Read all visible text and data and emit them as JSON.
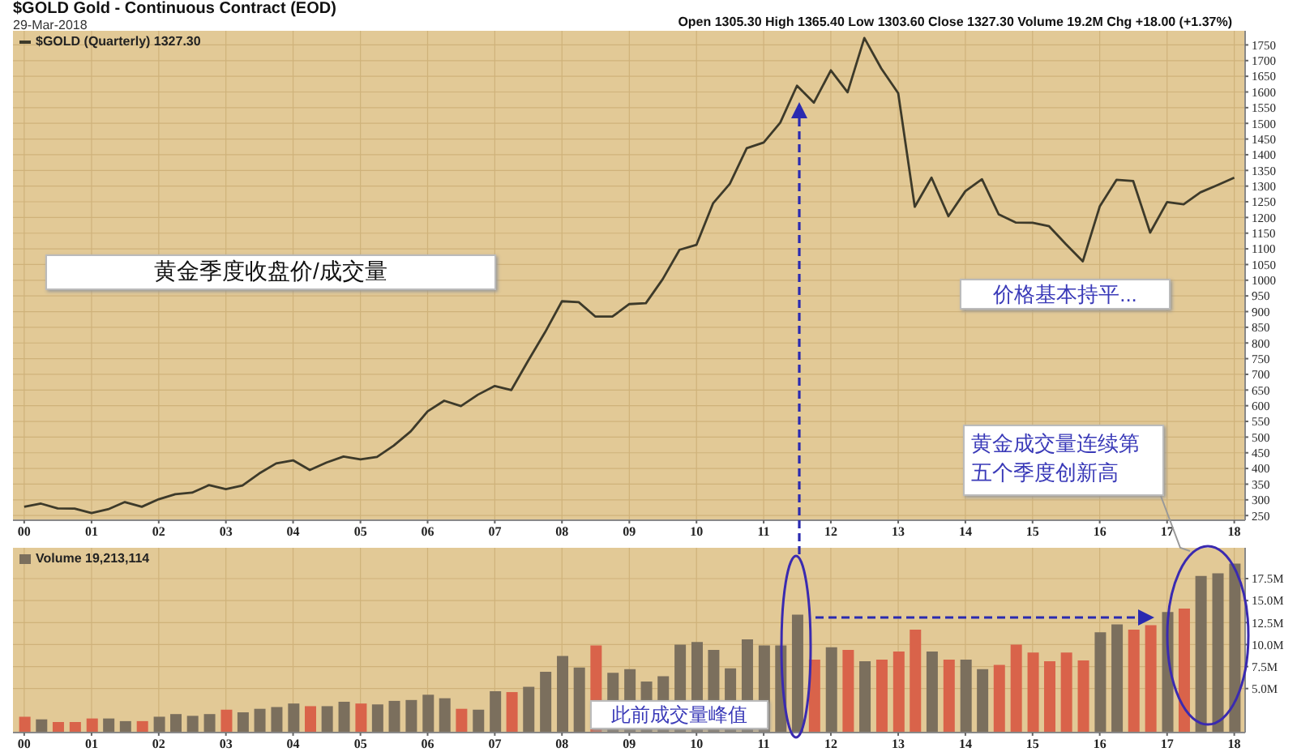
{
  "chart_data": [
    {
      "type": "line",
      "title": "$GOLD Gold - Continuous Contract (EOD)",
      "annotations": [
        "29-Mar-2018",
        "Open 1305.30 High 1365.40 Low 1303.60 Close 1327.30 Volume 19.2M Chg +18.00 (+1.37%)",
        "黄金季度收盘价/成交量",
        "价格基本持平...",
        "黄金成交量连续第五个季度创新高"
      ],
      "x": [
        "2000-01",
        "2000-04",
        "2000-07",
        "2000-10",
        "2001-01",
        "2001-04",
        "2001-07",
        "2001-10",
        "2002-01",
        "2002-04",
        "2002-07",
        "2002-10",
        "2003-01",
        "2003-04",
        "2003-07",
        "2003-10",
        "2004-01",
        "2004-04",
        "2004-07",
        "2004-10",
        "2005-01",
        "2005-04",
        "2005-07",
        "2005-10",
        "2006-01",
        "2006-04",
        "2006-07",
        "2006-10",
        "2007-01",
        "2007-04",
        "2007-07",
        "2007-10",
        "2008-01",
        "2008-04",
        "2008-07",
        "2008-10",
        "2009-01",
        "2009-04",
        "2009-07",
        "2009-10",
        "2010-01",
        "2010-04",
        "2010-07",
        "2010-10",
        "2011-01",
        "2011-04",
        "2011-07",
        "2011-10",
        "2012-01",
        "2012-04",
        "2012-07",
        "2012-10",
        "2013-01",
        "2013-04",
        "2013-07",
        "2013-10",
        "2014-01",
        "2014-04",
        "2014-07",
        "2014-10",
        "2015-01",
        "2015-04",
        "2015-07",
        "2015-10",
        "2016-01",
        "2016-04",
        "2016-07",
        "2016-10",
        "2017-01",
        "2017-04",
        "2017-07",
        "2017-10",
        "2018-01"
      ],
      "series": [
        {
          "name": "$GOLD (Quarterly) 1327.30",
          "color": "#3d3a2a",
          "values": [
            278,
            288,
            273,
            272,
            258,
            270,
            293,
            278,
            302,
            318,
            323,
            347,
            334,
            346,
            384,
            416,
            426,
            395,
            419,
            438,
            429,
            437,
            473,
            518,
            582,
            616,
            599,
            635,
            663,
            650,
            743,
            834,
            933,
            930,
            884,
            884,
            924,
            927,
            1003,
            1097,
            1113,
            1245,
            1307,
            1421,
            1439,
            1502,
            1620,
            1566,
            1669,
            1599,
            1772,
            1675,
            1596,
            1234,
            1327,
            1204,
            1284,
            1322,
            1210,
            1184,
            1183,
            1172,
            1115,
            1060,
            1235,
            1320,
            1316,
            1152,
            1249,
            1242,
            1280,
            1303,
            1327
          ]
        }
      ],
      "xlim": [
        "1999-11",
        "2018-03"
      ],
      "xticks": [
        {
          "value": "2000-01",
          "label": "00"
        },
        {
          "value": "2001-01",
          "label": "01"
        },
        {
          "value": "2002-01",
          "label": "02"
        },
        {
          "value": "2003-01",
          "label": "03"
        },
        {
          "value": "2004-01",
          "label": "04"
        },
        {
          "value": "2005-01",
          "label": "05"
        },
        {
          "value": "2006-01",
          "label": "06"
        },
        {
          "value": "2007-01",
          "label": "07"
        },
        {
          "value": "2008-01",
          "label": "08"
        },
        {
          "value": "2009-01",
          "label": "09"
        },
        {
          "value": "2010-01",
          "label": "10"
        },
        {
          "value": "2011-01",
          "label": "11"
        },
        {
          "value": "2012-01",
          "label": "12"
        },
        {
          "value": "2013-01",
          "label": "13"
        },
        {
          "value": "2014-01",
          "label": "14"
        },
        {
          "value": "2015-01",
          "label": "15"
        },
        {
          "value": "2016-01",
          "label": "16"
        },
        {
          "value": "2017-01",
          "label": "17"
        },
        {
          "value": "2018-01",
          "label": "18"
        }
      ],
      "ylim": [
        235,
        1795
      ],
      "yticks": [
        250,
        300,
        350,
        400,
        450,
        500,
        550,
        600,
        650,
        700,
        750,
        800,
        850,
        900,
        950,
        1000,
        1050,
        1100,
        1150,
        1200,
        1250,
        1300,
        1350,
        1400,
        1450,
        1500,
        1550,
        1600,
        1650,
        1700,
        1750
      ],
      "grid": true,
      "legend": "top left"
    },
    {
      "type": "bar",
      "annotations": [
        "此前成交量峰值"
      ],
      "x": [
        "2000-01",
        "2000-04",
        "2000-07",
        "2000-10",
        "2001-01",
        "2001-04",
        "2001-07",
        "2001-10",
        "2002-01",
        "2002-04",
        "2002-07",
        "2002-10",
        "2003-01",
        "2003-04",
        "2003-07",
        "2003-10",
        "2004-01",
        "2004-04",
        "2004-07",
        "2004-10",
        "2005-01",
        "2005-04",
        "2005-07",
        "2005-10",
        "2006-01",
        "2006-04",
        "2006-07",
        "2006-10",
        "2007-01",
        "2007-04",
        "2007-07",
        "2007-10",
        "2008-01",
        "2008-04",
        "2008-07",
        "2008-10",
        "2009-01",
        "2009-04",
        "2009-07",
        "2009-10",
        "2010-01",
        "2010-04",
        "2010-07",
        "2010-10",
        "2011-01",
        "2011-04",
        "2011-07",
        "2011-10",
        "2012-01",
        "2012-04",
        "2012-07",
        "2012-10",
        "2013-01",
        "2013-04",
        "2013-07",
        "2013-10",
        "2014-01",
        "2014-04",
        "2014-07",
        "2014-10",
        "2015-01",
        "2015-04",
        "2015-07",
        "2015-10",
        "2016-01",
        "2016-04",
        "2016-07",
        "2016-10",
        "2017-01",
        "2017-04",
        "2017-07",
        "2017-10",
        "2018-01"
      ],
      "series": [
        {
          "name": "Volume 19,213,114",
          "color": "#7b6f5d",
          "values": [
            1.8,
            1.5,
            1.2,
            1.2,
            1.6,
            1.6,
            1.3,
            1.3,
            1.8,
            2.1,
            1.9,
            2.1,
            2.6,
            2.3,
            2.7,
            2.9,
            3.3,
            3.0,
            3.0,
            3.5,
            3.3,
            3.2,
            3.6,
            3.7,
            4.3,
            3.9,
            2.7,
            2.6,
            4.7,
            4.6,
            5.2,
            6.9,
            8.7,
            7.4,
            9.9,
            6.8,
            7.2,
            5.8,
            6.4,
            10.0,
            10.3,
            9.4,
            7.3,
            10.6,
            9.9,
            9.9,
            13.4,
            8.3,
            9.7,
            9.4,
            8.1,
            8.3,
            9.2,
            11.7,
            9.2,
            8.3,
            8.3,
            7.2,
            7.7,
            10.0,
            9.1,
            8.1,
            9.1,
            8.2,
            11.4,
            12.3,
            11.7,
            12.2,
            13.7,
            14.1,
            17.8,
            18.1,
            19.2
          ],
          "colors": [
            "#d9634a",
            "#7b6f5d",
            "#d9634a",
            "#d9634a",
            "#d9634a",
            "#7b6f5d",
            "#7b6f5d",
            "#d9634a",
            "#7b6f5d",
            "#7b6f5d",
            "#7b6f5d",
            "#7b6f5d",
            "#d9634a",
            "#7b6f5d",
            "#7b6f5d",
            "#7b6f5d",
            "#7b6f5d",
            "#d9634a",
            "#7b6f5d",
            "#7b6f5d",
            "#d9634a",
            "#7b6f5d",
            "#7b6f5d",
            "#7b6f5d",
            "#7b6f5d",
            "#7b6f5d",
            "#d9634a",
            "#7b6f5d",
            "#7b6f5d",
            "#d9634a",
            "#7b6f5d",
            "#7b6f5d",
            "#7b6f5d",
            "#7b6f5d",
            "#d9634a",
            "#7b6f5d",
            "#7b6f5d",
            "#7b6f5d",
            "#7b6f5d",
            "#7b6f5d",
            "#7b6f5d",
            "#7b6f5d",
            "#7b6f5d",
            "#7b6f5d",
            "#7b6f5d",
            "#7b6f5d",
            "#7b6f5d",
            "#d9634a",
            "#7b6f5d",
            "#d9634a",
            "#7b6f5d",
            "#d9634a",
            "#d9634a",
            "#d9634a",
            "#7b6f5d",
            "#d9634a",
            "#7b6f5d",
            "#7b6f5d",
            "#d9634a",
            "#d9634a",
            "#d9634a",
            "#d9634a",
            "#d9634a",
            "#d9634a",
            "#7b6f5d",
            "#7b6f5d",
            "#d9634a",
            "#d9634a",
            "#7b6f5d",
            "#d9634a",
            "#7b6f5d",
            "#7b6f5d",
            "#7b6f5d"
          ]
        }
      ],
      "xlim": [
        "1999-11",
        "2018-03"
      ],
      "xticks": [
        {
          "value": "2000-01",
          "label": "00"
        },
        {
          "value": "2001-01",
          "label": "01"
        },
        {
          "value": "2002-01",
          "label": "02"
        },
        {
          "value": "2003-01",
          "label": "03"
        },
        {
          "value": "2004-01",
          "label": "04"
        },
        {
          "value": "2005-01",
          "label": "05"
        },
        {
          "value": "2006-01",
          "label": "06"
        },
        {
          "value": "2007-01",
          "label": "07"
        },
        {
          "value": "2008-01",
          "label": "08"
        },
        {
          "value": "2009-01",
          "label": "09"
        },
        {
          "value": "2010-01",
          "label": "10"
        },
        {
          "value": "2011-01",
          "label": "11"
        },
        {
          "value": "2012-01",
          "label": "12"
        },
        {
          "value": "2013-01",
          "label": "13"
        },
        {
          "value": "2014-01",
          "label": "14"
        },
        {
          "value": "2015-01",
          "label": "15"
        },
        {
          "value": "2016-01",
          "label": "16"
        },
        {
          "value": "2017-01",
          "label": "17"
        },
        {
          "value": "2018-01",
          "label": "18"
        }
      ],
      "ylim": [
        0,
        21
      ],
      "yticks": [
        {
          "value": 5,
          "label": "5.0M"
        },
        {
          "value": 7.5,
          "label": "7.5M"
        },
        {
          "value": 10,
          "label": "10.0M"
        },
        {
          "value": 12.5,
          "label": "12.5M"
        },
        {
          "value": 15,
          "label": "15.0M"
        },
        {
          "value": 17.5,
          "label": "17.5M"
        }
      ],
      "grid": true,
      "legend": "top left"
    }
  ]
}
